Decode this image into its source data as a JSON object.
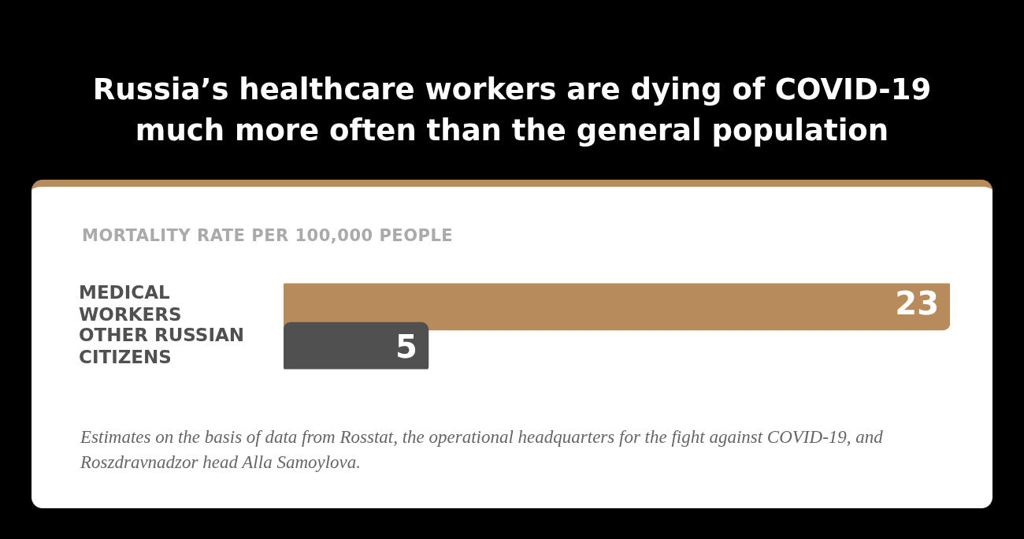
{
  "chart_data": {
    "type": "bar",
    "orientation": "horizontal",
    "title": "Russia’s healthcare workers are dying of COVID-19 much more often than the general population",
    "subtitle": "MORTALITY RATE PER 100,000 PEOPLE",
    "categories": [
      "MEDICAL WORKERS",
      "OTHER RUSSIAN CITIZENS"
    ],
    "values": [
      23,
      5
    ],
    "colors": [
      "#b88b5a",
      "#505050"
    ],
    "data_labels": true,
    "grid": false,
    "legend": false,
    "annotations": [
      "Estimates on the basis of data from Rosstat, the operational headquarters for the fight against COVID-19, and Roszdravnadzor head Alla Samoylova."
    ]
  }
}
